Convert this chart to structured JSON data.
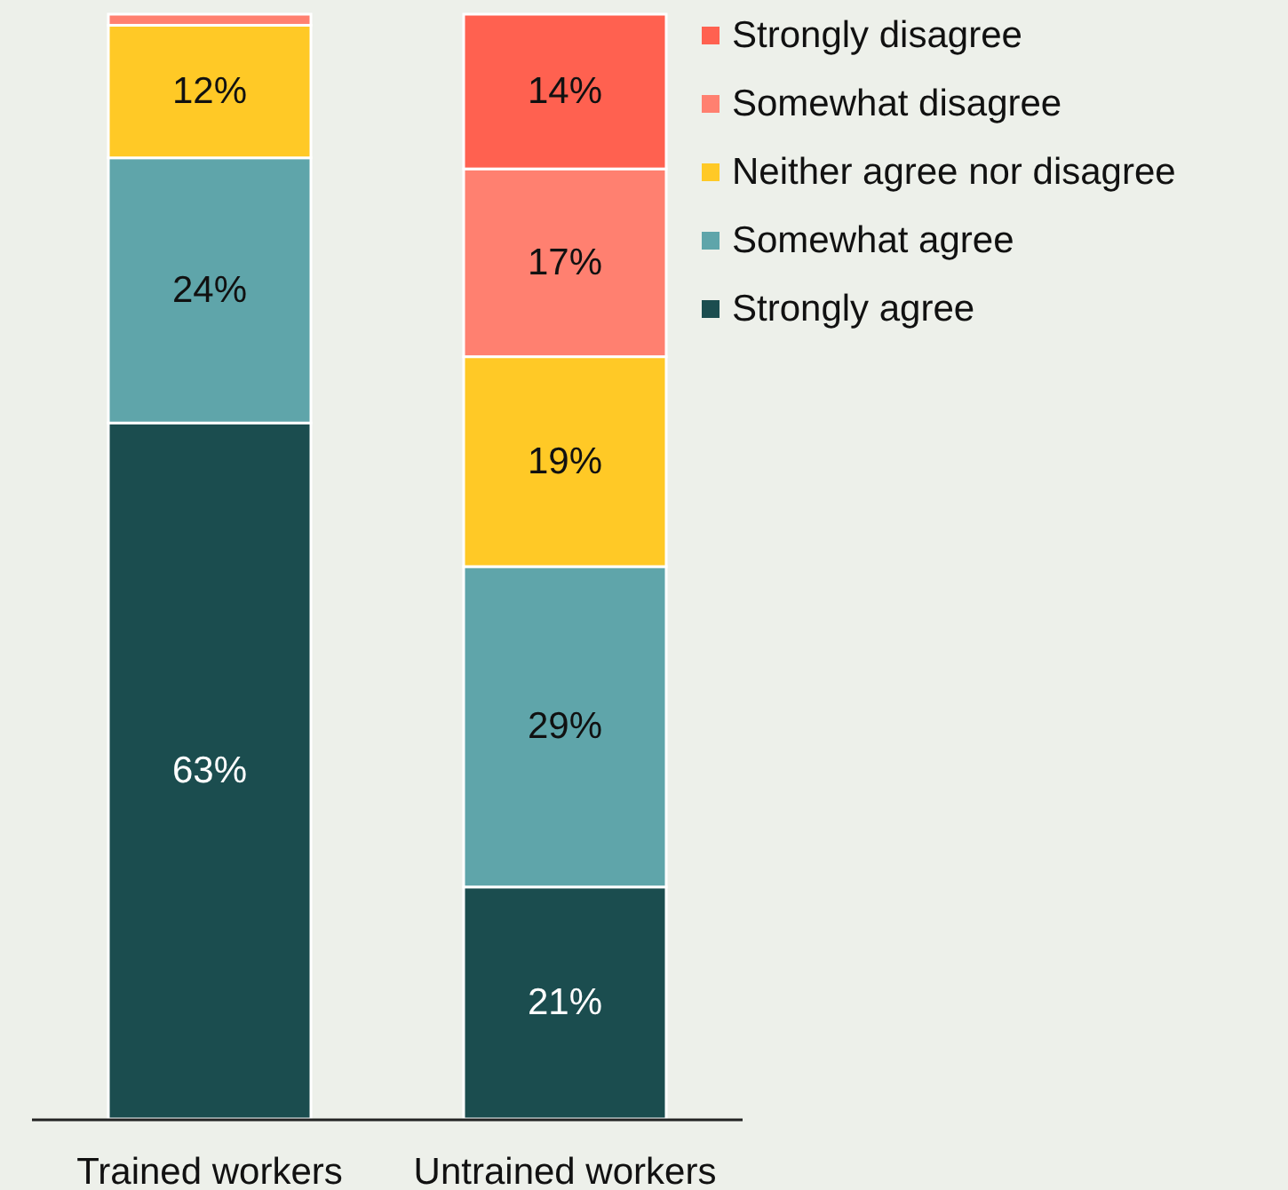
{
  "chart_data": {
    "type": "bar",
    "stacked": true,
    "categories": [
      "Trained workers",
      "Untrained workers"
    ],
    "ylim": [
      0,
      100
    ],
    "tick_labels": "x",
    "legend": "top right",
    "series": [
      {
        "name": "Strongly agree",
        "color": "#1b4d4f",
        "values": [
          63,
          21
        ],
        "value_labels": [
          "63%",
          "21%"
        ]
      },
      {
        "name": "Somewhat agree",
        "color": "#5fa5aa",
        "values": [
          24,
          29
        ],
        "value_labels": [
          "24%",
          "29%"
        ]
      },
      {
        "name": "Neither agree nor disagree",
        "color": "#ffc926",
        "values": [
          12,
          19
        ],
        "value_labels": [
          "12%",
          "19%"
        ]
      },
      {
        "name": "Somewhat disagree",
        "color": "#ff8070",
        "values": [
          1,
          17
        ],
        "value_labels": [
          null,
          "17%"
        ]
      },
      {
        "name": "Strongly disagree",
        "color": "#ff6150",
        "values": [
          0,
          14
        ],
        "value_labels": [
          null,
          "14%"
        ]
      }
    ]
  }
}
